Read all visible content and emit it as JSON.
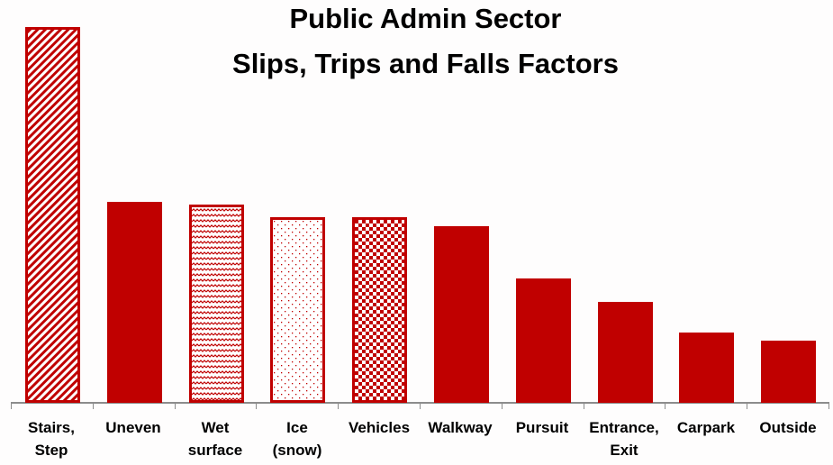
{
  "chart_data": {
    "type": "bar",
    "title": "Public Admin Sector\nSlips, Trips and Falls Factors",
    "title_lines": [
      "Public Admin Sector",
      "Slips, Trips and Falls Factors"
    ],
    "xlabel": "",
    "ylabel": "",
    "grid": false,
    "legend": "none",
    "y_axis_visible": false,
    "value_units": "relative bar height (no y-axis scale shown; px above baseline)",
    "categories": [
      "Stairs, Step",
      "Uneven",
      "Wet surface",
      "Ice (snow)",
      "Vehicles",
      "Walkway",
      "Pursuit",
      "Entrance, Exit",
      "Carpark",
      "Outside"
    ],
    "category_lines": [
      [
        "Stairs,",
        "Step"
      ],
      [
        "Uneven"
      ],
      [
        "Wet",
        "surface"
      ],
      [
        "Ice",
        "(snow)"
      ],
      [
        "Vehicles"
      ],
      [
        "Walkway"
      ],
      [
        "Pursuit"
      ],
      [
        "Entrance,",
        "Exit"
      ],
      [
        "Carpark"
      ],
      [
        "Outside"
      ]
    ],
    "values": [
      417,
      223,
      220,
      206,
      206,
      196,
      138,
      112,
      78,
      69
    ],
    "fills": [
      "diagonal-stripes",
      "solid",
      "wave",
      "dots",
      "checkerboard",
      "solid",
      "solid",
      "solid",
      "solid",
      "solid"
    ],
    "bar_color": "#c00000",
    "axis_color": "#8c8c8c"
  }
}
